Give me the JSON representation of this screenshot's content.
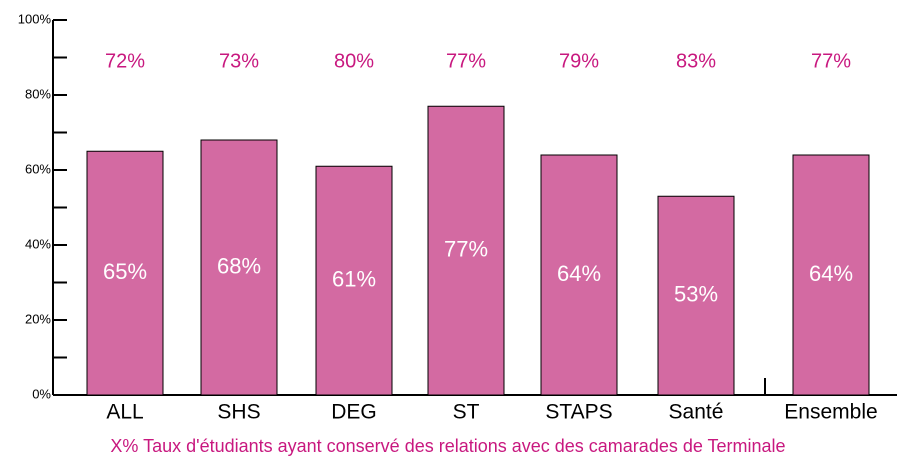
{
  "chart_data": {
    "type": "bar",
    "categories": [
      "ALL",
      "SHS",
      "DEG",
      "ST",
      "STAPS",
      "Santé",
      "Ensemble"
    ],
    "values": [
      65,
      68,
      61,
      77,
      64,
      53,
      64
    ],
    "value_labels": [
      "65%",
      "68%",
      "61%",
      "77%",
      "64%",
      "53%",
      "64%"
    ],
    "color": "#d36aa2",
    "rate_values": [
      72,
      73,
      80,
      77,
      79,
      83,
      77
    ],
    "rate_labels": [
      "72%",
      "73%",
      "80%",
      "77%",
      "79%",
      "83%",
      "77%"
    ],
    "rate_color": "#c8187f",
    "note": "X%  Taux d'étudiants ayant conservé des relations avec des camarades de Terminale",
    "ylim": [
      0,
      100
    ],
    "yticks": [
      {
        "value": 0,
        "label": "0%"
      },
      {
        "value": 20,
        "label": "20%"
      },
      {
        "value": 40,
        "label": "40%"
      },
      {
        "value": 60,
        "label": "60%"
      },
      {
        "value": 80,
        "label": "80%"
      },
      {
        "value": 100,
        "label": "100%"
      }
    ]
  }
}
